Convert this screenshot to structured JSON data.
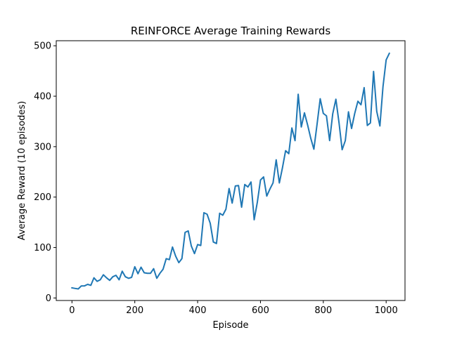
{
  "chart_data": {
    "type": "line",
    "title": "REINFORCE Average Training Rewards",
    "xlabel": "Episode",
    "ylabel": "Average Reward (10 episodes)",
    "xlim": [
      -50,
      1060
    ],
    "ylim": [
      -5,
      510
    ],
    "xticks": [
      0,
      200,
      400,
      600,
      800,
      1000
    ],
    "yticks": [
      0,
      100,
      200,
      300,
      400,
      500
    ],
    "grid": false,
    "legend": "none",
    "line_color": "#1f77b4",
    "series": [
      {
        "x": [
          0,
          10,
          20,
          30,
          40,
          50,
          60,
          70,
          80,
          90,
          100,
          110,
          120,
          130,
          140,
          150,
          160,
          170,
          180,
          190,
          200,
          210,
          220,
          230,
          240,
          250,
          260,
          270,
          280,
          290,
          300,
          310,
          320,
          330,
          340,
          350,
          360,
          370,
          380,
          390,
          400,
          410,
          420,
          430,
          440,
          450,
          460,
          470,
          480,
          490,
          500,
          510,
          520,
          530,
          540,
          550,
          560,
          570,
          580,
          590,
          600,
          610,
          620,
          630,
          640,
          650,
          660,
          670,
          680,
          690,
          700,
          710,
          720,
          730,
          740,
          750,
          760,
          770,
          780,
          790,
          800,
          810,
          820,
          830,
          840,
          850,
          860,
          870,
          880,
          890,
          900,
          910,
          920,
          930,
          940,
          950,
          960,
          970,
          980,
          990,
          1000,
          1010
        ],
        "y": [
          20,
          19,
          18,
          24,
          24,
          27,
          25,
          40,
          33,
          36,
          46,
          40,
          35,
          42,
          45,
          36,
          53,
          42,
          39,
          41,
          62,
          48,
          61,
          50,
          49,
          49,
          58,
          39,
          49,
          57,
          78,
          76,
          101,
          83,
          70,
          78,
          130,
          133,
          103,
          88,
          106,
          104,
          169,
          166,
          148,
          111,
          108,
          168,
          164,
          176,
          217,
          188,
          222,
          223,
          180,
          225,
          220,
          230,
          155,
          190,
          234,
          240,
          202,
          216,
          228,
          274,
          228,
          258,
          292,
          286,
          337,
          312,
          404,
          339,
          367,
          343,
          317,
          295,
          344,
          395,
          366,
          361,
          312,
          365,
          394,
          347,
          294,
          312,
          369,
          336,
          366,
          390,
          383,
          417,
          342,
          347,
          449,
          370,
          341,
          419,
          472,
          485
        ]
      }
    ]
  }
}
